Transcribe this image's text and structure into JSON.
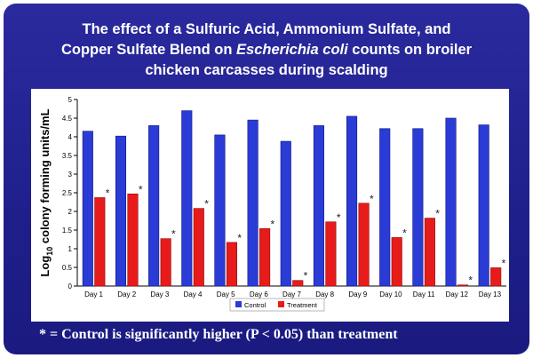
{
  "title": {
    "line1": "The effect of a Sulfuric Acid, Ammonium Sulfate, and",
    "line2_pre": "Copper Sulfate Blend on ",
    "line2_italic": "Escherichia coli",
    "line2_post": " counts on broiler",
    "line3": "chicken carcasses during scalding"
  },
  "footnote": "* = Control is significantly higher (P < 0.05) than treatment",
  "chart_data": {
    "type": "bar",
    "title": "",
    "ylabel_prefix": "Log",
    "ylabel_sub": "10",
    "ylabel_rest": " colony forming units/mL",
    "xlabel": "",
    "ylim": [
      0,
      5
    ],
    "yticks": [
      "0",
      "0.5",
      "1",
      "1.5",
      "2",
      "2.5",
      "3",
      "3.5",
      "4",
      "4.5",
      "5"
    ],
    "grid": false,
    "legend_position": "bottom-center",
    "categories": [
      "Day 1",
      "Day 2",
      "Day 3",
      "Day 4",
      "Day 5",
      "Day 6",
      "Day 7",
      "Day 8",
      "Day 9",
      "Day 10",
      "Day 11",
      "Day 12",
      "Day 13"
    ],
    "series": [
      {
        "name": "Control",
        "color": "#2a3bd6",
        "values": [
          4.15,
          4.02,
          4.3,
          4.7,
          4.05,
          4.45,
          3.88,
          4.3,
          4.55,
          4.22,
          4.22,
          4.5,
          4.32
        ]
      },
      {
        "name": "Treatment",
        "color": "#e81b1b",
        "values": [
          2.37,
          2.47,
          1.27,
          2.08,
          1.17,
          1.54,
          0.15,
          1.72,
          2.22,
          1.3,
          1.82,
          0.03,
          0.49
        ]
      }
    ],
    "significance_marker": "*",
    "significant": [
      true,
      true,
      true,
      true,
      true,
      true,
      true,
      true,
      true,
      true,
      true,
      true,
      true
    ]
  }
}
